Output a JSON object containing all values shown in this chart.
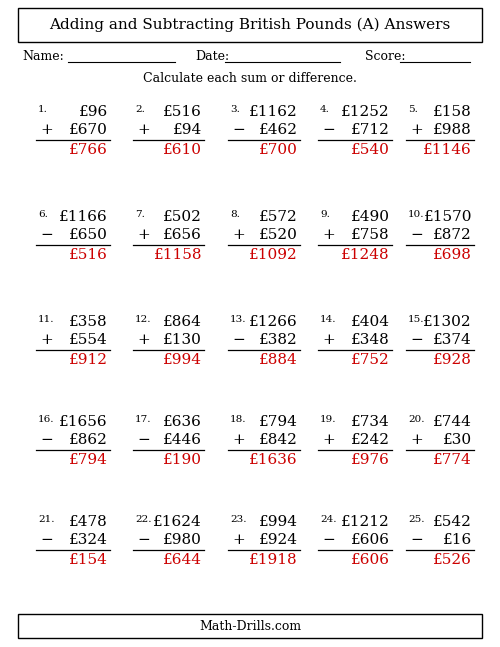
{
  "title": "Adding and Subtracting British Pounds (A) Answers",
  "subtitle": "Calculate each sum or difference.",
  "name_label": "Name:",
  "date_label": "Date:",
  "score_label": "Score:",
  "footer": "Math-Drills.com",
  "problems": [
    {
      "num": "1.",
      "top": "£96",
      "op": "+",
      "bot": "£670",
      "ans": "£766"
    },
    {
      "num": "2.",
      "top": "£516",
      "op": "+",
      "bot": "£94",
      "ans": "£610"
    },
    {
      "num": "3.",
      "top": "£1162",
      "op": "−",
      "bot": "£462",
      "ans": "£700"
    },
    {
      "num": "4.",
      "top": "£1252",
      "op": "−",
      "bot": "£712",
      "ans": "£540"
    },
    {
      "num": "5.",
      "top": "£158",
      "op": "+",
      "bot": "£988",
      "ans": "£1146"
    },
    {
      "num": "6.",
      "top": "£1166",
      "op": "−",
      "bot": "£650",
      "ans": "£516"
    },
    {
      "num": "7.",
      "top": "£502",
      "op": "+",
      "bot": "£656",
      "ans": "£1158"
    },
    {
      "num": "8.",
      "top": "£572",
      "op": "+",
      "bot": "£520",
      "ans": "£1092"
    },
    {
      "num": "9.",
      "top": "£490",
      "op": "+",
      "bot": "£758",
      "ans": "£1248"
    },
    {
      "num": "10.",
      "top": "£1570",
      "op": "−",
      "bot": "£872",
      "ans": "£698"
    },
    {
      "num": "11.",
      "top": "£358",
      "op": "+",
      "bot": "£554",
      "ans": "£912"
    },
    {
      "num": "12.",
      "top": "£864",
      "op": "+",
      "bot": "£130",
      "ans": "£994"
    },
    {
      "num": "13.",
      "top": "£1266",
      "op": "−",
      "bot": "£382",
      "ans": "£884"
    },
    {
      "num": "14.",
      "top": "£404",
      "op": "+",
      "bot": "£348",
      "ans": "£752"
    },
    {
      "num": "15.",
      "top": "£1302",
      "op": "−",
      "bot": "£374",
      "ans": "£928"
    },
    {
      "num": "16.",
      "top": "£1656",
      "op": "−",
      "bot": "£862",
      "ans": "£794"
    },
    {
      "num": "17.",
      "top": "£636",
      "op": "−",
      "bot": "£446",
      "ans": "£190"
    },
    {
      "num": "18.",
      "top": "£794",
      "op": "+",
      "bot": "£842",
      "ans": "£1636"
    },
    {
      "num": "19.",
      "top": "£734",
      "op": "+",
      "bot": "£242",
      "ans": "£976"
    },
    {
      "num": "20.",
      "top": "£744",
      "op": "+",
      "bot": "£30",
      "ans": "£774"
    },
    {
      "num": "21.",
      "top": "£478",
      "op": "−",
      "bot": "£324",
      "ans": "£154"
    },
    {
      "num": "22.",
      "top": "£1624",
      "op": "−",
      "bot": "£980",
      "ans": "£644"
    },
    {
      "num": "23.",
      "top": "£994",
      "op": "+",
      "bot": "£924",
      "ans": "£1918"
    },
    {
      "num": "24.",
      "top": "£1212",
      "op": "−",
      "bot": "£606",
      "ans": "£606"
    },
    {
      "num": "25.",
      "top": "£542",
      "op": "−",
      "bot": "£16",
      "ans": "£526"
    }
  ],
  "bg_color": "#ffffff",
  "text_color": "#000000",
  "ans_color": "#cc0000",
  "title_fontsize": 11,
  "body_fontsize": 11,
  "number_fontsize": 7.5,
  "header_fontsize": 9,
  "footer_fontsize": 9
}
